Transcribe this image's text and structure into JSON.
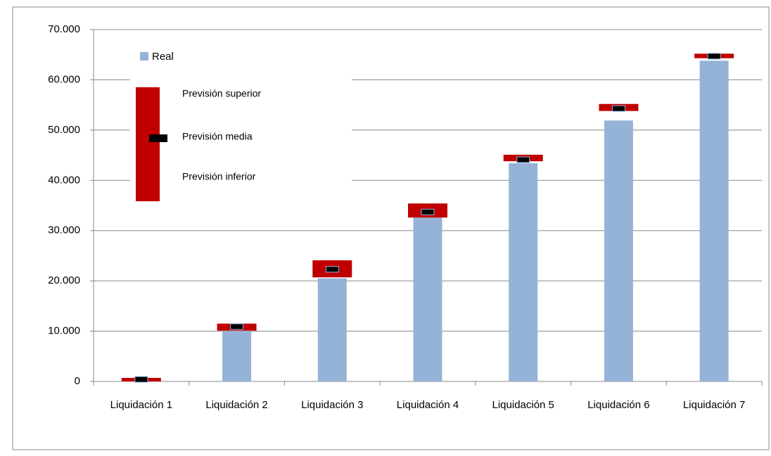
{
  "chart_data": {
    "type": "bar-range",
    "categories": [
      "Liquidación 1",
      "Liquidación 2",
      "Liquidación 3",
      "Liquidación 4",
      "Liquidación 5",
      "Liquidación 6",
      "Liquidación 7"
    ],
    "series": [
      {
        "name": "Real",
        "color": "#95b3d7",
        "values": [
          200,
          10000,
          20500,
          32600,
          43400,
          51900,
          63800
        ]
      },
      {
        "name": "Previsión superior",
        "color": "#c00000",
        "values": [
          700,
          11500,
          24100,
          35400,
          45100,
          55200,
          65200
        ]
      },
      {
        "name": "Previsión media",
        "color": "#000000",
        "values": [
          400,
          10900,
          22300,
          33700,
          44100,
          54300,
          64700
        ]
      },
      {
        "name": "Previsión inferior",
        "color": "#c00000",
        "values": [
          0,
          10100,
          20700,
          32600,
          43800,
          53800,
          64300
        ]
      }
    ],
    "ylim": [
      0,
      70000
    ],
    "yticks": [
      0,
      {
        "value": 10000,
        "label": "10.000"
      },
      {
        "value": 20000,
        "label": "20.000"
      },
      {
        "value": 30000,
        "label": "30.000"
      },
      {
        "value": 40000,
        "label": "40.000"
      },
      {
        "value": 50000,
        "label": "50.000"
      },
      {
        "value": 60000,
        "label": "60.000"
      },
      {
        "value": 70000,
        "label": "70.000"
      }
    ],
    "grid": true
  }
}
